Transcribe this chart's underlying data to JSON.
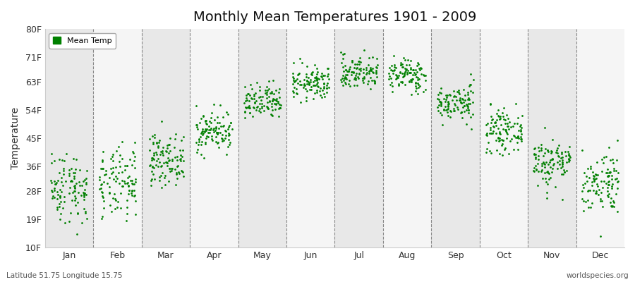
{
  "title": "Monthly Mean Temperatures 1901 - 2009",
  "ylabel": "Temperature",
  "dot_color": "#008000",
  "background_color": "#ffffff",
  "plot_bg_color": "#ffffff",
  "band_color_even": "#e8e8e8",
  "band_color_odd": "#f5f5f5",
  "ylim": [
    10,
    80
  ],
  "yticks": [
    10,
    19,
    28,
    36,
    45,
    54,
    63,
    71,
    80
  ],
  "ytick_labels": [
    "10F",
    "19F",
    "28F",
    "36F",
    "45F",
    "54F",
    "63F",
    "71F",
    "80F"
  ],
  "months": [
    "Jan",
    "Feb",
    "Mar",
    "Apr",
    "May",
    "Jun",
    "Jul",
    "Aug",
    "Sep",
    "Oct",
    "Nov",
    "Dec"
  ],
  "month_centers": [
    0.5,
    1.5,
    2.5,
    3.5,
    4.5,
    5.5,
    6.5,
    7.5,
    8.5,
    9.5,
    10.5,
    11.5
  ],
  "month_boundaries": [
    1.0,
    2.0,
    3.0,
    4.0,
    5.0,
    6.0,
    7.0,
    8.0,
    9.0,
    10.0,
    11.0
  ],
  "footer_left": "Latitude 51.75 Longitude 15.75",
  "footer_right": "worldspecies.org",
  "legend_label": "Mean Temp",
  "mean_temps_C": {
    "Jan": -1.5,
    "Feb": -1.0,
    "Mar": 3.5,
    "Apr": 8.5,
    "May": 13.5,
    "Jun": 17.0,
    "Jul": 19.0,
    "Aug": 18.5,
    "Sep": 13.5,
    "Oct": 8.5,
    "Nov": 3.0,
    "Dec": -0.5
  },
  "std_temps_C": {
    "Jan": 3.2,
    "Feb": 3.2,
    "Mar": 2.2,
    "Apr": 1.8,
    "May": 1.6,
    "Jun": 1.5,
    "Jul": 1.5,
    "Aug": 1.5,
    "Sep": 1.6,
    "Oct": 1.8,
    "Nov": 2.2,
    "Dec": 2.8
  },
  "n_years": 109,
  "seed": 42,
  "marker_size": 4,
  "xlim": [
    0,
    12
  ]
}
